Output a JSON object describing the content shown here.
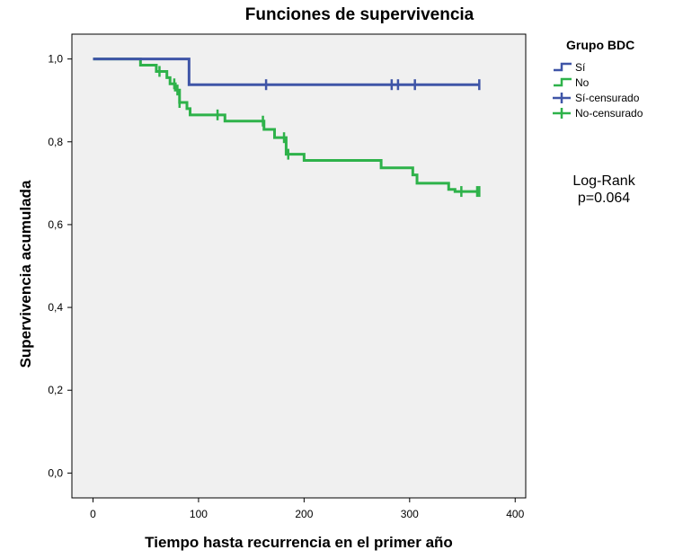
{
  "chart_data": {
    "type": "line",
    "step": true,
    "title": "Funciones de supervivencia",
    "xlabel": "Tiempo hasta recurrencia en el primer año",
    "ylabel": "Supervivencia acumulada",
    "xlim": [
      -20,
      410
    ],
    "ylim": [
      -0.06,
      1.06
    ],
    "xticks": [
      "0",
      "100",
      "200",
      "300",
      "400"
    ],
    "xtick_values": [
      0,
      100,
      200,
      300,
      400
    ],
    "yticks": [
      "0,0",
      "0,2",
      "0,4",
      "0,6",
      "0,8",
      "1,0"
    ],
    "ytick_values": [
      0,
      0.2,
      0.4,
      0.6,
      0.8,
      1.0
    ],
    "grid": false,
    "legend_title": "Grupo BDC",
    "legend_position": "right",
    "legend": [
      {
        "label": "Sí",
        "color": "#3F55A7",
        "kind": "line"
      },
      {
        "label": "No",
        "color": "#2EB24A",
        "kind": "line"
      },
      {
        "label": "Sí-censurado",
        "color": "#3F55A7",
        "kind": "censor"
      },
      {
        "label": "No-censurado",
        "color": "#2EB24A",
        "kind": "censor"
      }
    ],
    "series": [
      {
        "name": "Sí",
        "color": "#3F55A7",
        "x": [
          0,
          91,
          366
        ],
        "y": [
          1.0,
          0.938,
          0.938
        ],
        "censored_x": [
          164,
          283,
          289,
          305,
          366
        ]
      },
      {
        "name": "No",
        "color": "#2EB24A",
        "x": [
          0,
          45,
          60,
          70,
          73,
          78,
          82,
          89,
          92,
          120,
          125,
          160,
          162,
          172,
          183,
          200,
          273,
          303,
          307,
          337,
          343,
          366
        ],
        "y": [
          1.0,
          0.985,
          0.97,
          0.955,
          0.94,
          0.925,
          0.895,
          0.88,
          0.865,
          0.865,
          0.85,
          0.85,
          0.83,
          0.81,
          0.77,
          0.755,
          0.737,
          0.72,
          0.7,
          0.685,
          0.68,
          0.68
        ],
        "censored_x": [
          63,
          77,
          80,
          82,
          118,
          161,
          181,
          185,
          349,
          364,
          366
        ]
      }
    ],
    "annotation": [
      "Log-Rank",
      "p=0.064"
    ],
    "colors": {
      "panel_background": "#F0F0F0",
      "blue": "#3F55A7",
      "green": "#2EB24A"
    }
  }
}
